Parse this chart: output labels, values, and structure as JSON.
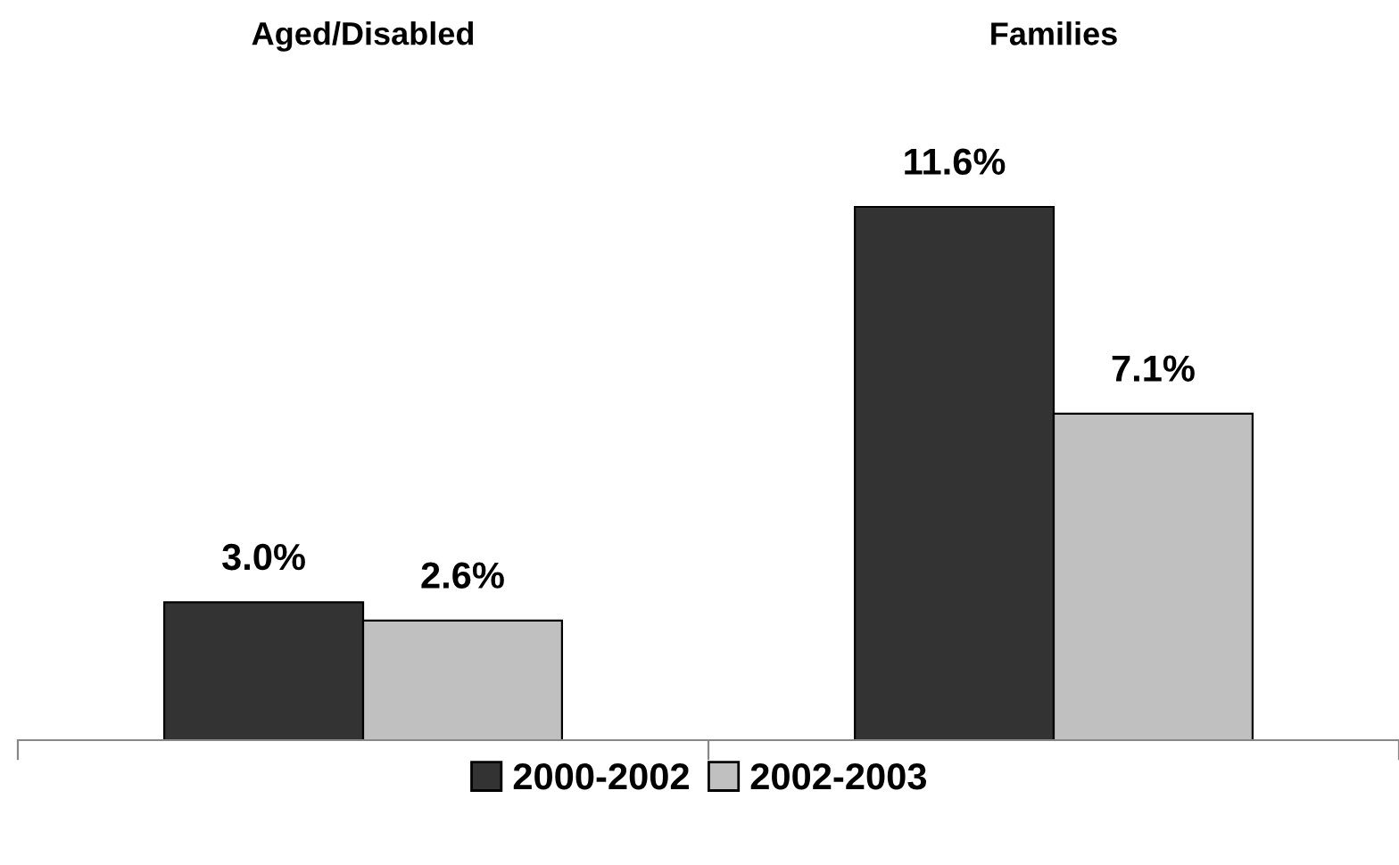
{
  "chart_data": {
    "type": "bar",
    "categories": [
      "Aged/Disabled",
      "Families"
    ],
    "series": [
      {
        "name": "2000-2002",
        "color": "#333333",
        "values": [
          3.0,
          11.6
        ],
        "value_labels": [
          "3.0%",
          "11.6%"
        ]
      },
      {
        "name": "2002-2003",
        "color": "#c0c0c0",
        "values": [
          2.6,
          7.1
        ],
        "value_labels": [
          "2.6%",
          "7.1%"
        ]
      }
    ],
    "legend": "bottom",
    "grid": false
  }
}
